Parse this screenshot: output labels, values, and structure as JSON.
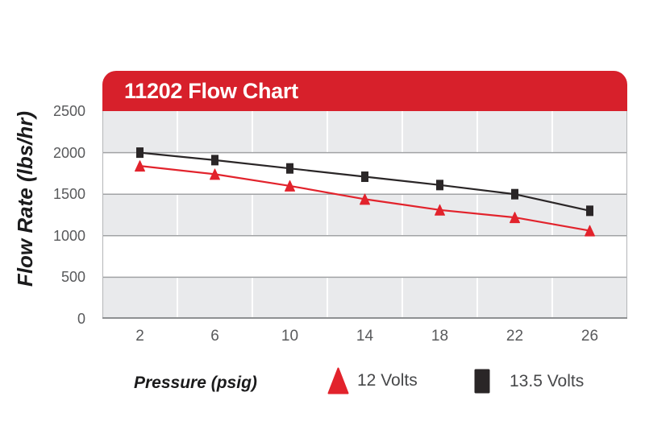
{
  "header": {
    "title": "11202 Flow Chart"
  },
  "chart_data": {
    "type": "line",
    "title": "11202 Flow Chart",
    "xlabel": "Pressure (psig)",
    "ylabel": "Flow Rate (lbs/hr)",
    "categories": [
      2,
      6,
      10,
      14,
      18,
      22,
      26
    ],
    "series": [
      {
        "name": "12 Volts",
        "marker": "triangle",
        "color": "#e2232c",
        "values": [
          1840,
          1740,
          1600,
          1440,
          1310,
          1220,
          1060
        ]
      },
      {
        "name": "13.5 Volts",
        "marker": "square",
        "color": "#2a2627",
        "values": [
          2000,
          1910,
          1810,
          1710,
          1610,
          1500,
          1300
        ]
      }
    ],
    "ylim": [
      0,
      2500
    ],
    "yticks": [
      0,
      500,
      1000,
      1500,
      2000,
      2500
    ],
    "xlim": [
      0,
      28
    ],
    "grid": "horizontal gray lines every 500; white vertical lines between categories; alternating gray/white 500-unit bands",
    "legend_position": "bottom"
  },
  "style": {
    "title_bar_red": "#d7202b",
    "title_text": "#ffffff",
    "band_gray": "#e9eaec",
    "band_white": "#ffffff",
    "gridline_gray": "#a1a3a5",
    "vertical_gridline": "#ffffff",
    "plot_border_side": "#b4b6b8",
    "plot_border_bottom": "#8e9092",
    "axis_text_gray": "#58595b",
    "legend_text_gray": "#47484a",
    "axis_title_black": "#1b1b1c"
  }
}
